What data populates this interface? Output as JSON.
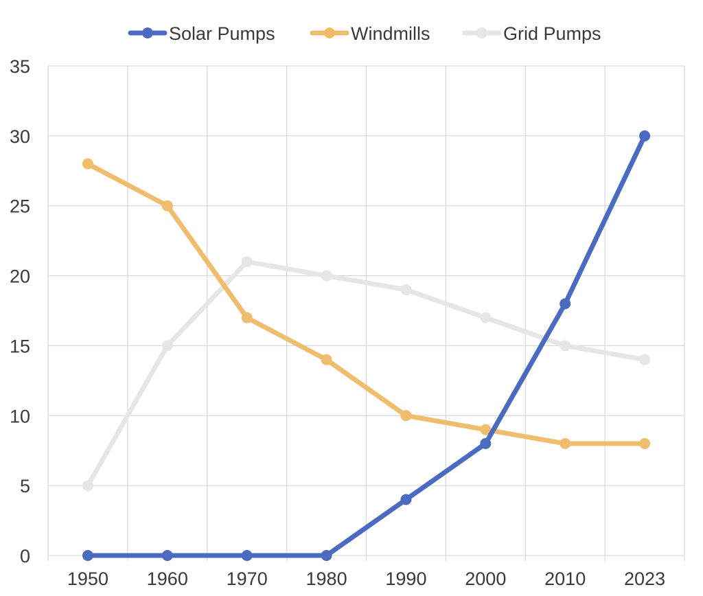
{
  "chart_data": {
    "type": "line",
    "title": "",
    "xlabel": "",
    "ylabel": "",
    "categories": [
      "1950",
      "1960",
      "1970",
      "1980",
      "1990",
      "2000",
      "2010",
      "2023"
    ],
    "ylim": [
      0,
      35
    ],
    "yticks": [
      0,
      5,
      10,
      15,
      20,
      25,
      30,
      35
    ],
    "grid": true,
    "legend_position": "top",
    "series": [
      {
        "name": "Solar Pumps",
        "color": "#4a6bbf",
        "values": [
          0,
          0,
          0,
          0,
          4,
          8,
          18,
          30
        ]
      },
      {
        "name": "Windmills",
        "color": "#efbd6e",
        "values": [
          28,
          25,
          17,
          14,
          10,
          9,
          8,
          8
        ]
      },
      {
        "name": "Grid Pumps",
        "color": "#e6e6e6",
        "values": [
          5,
          15,
          21,
          20,
          19,
          17,
          15,
          14
        ]
      }
    ]
  }
}
